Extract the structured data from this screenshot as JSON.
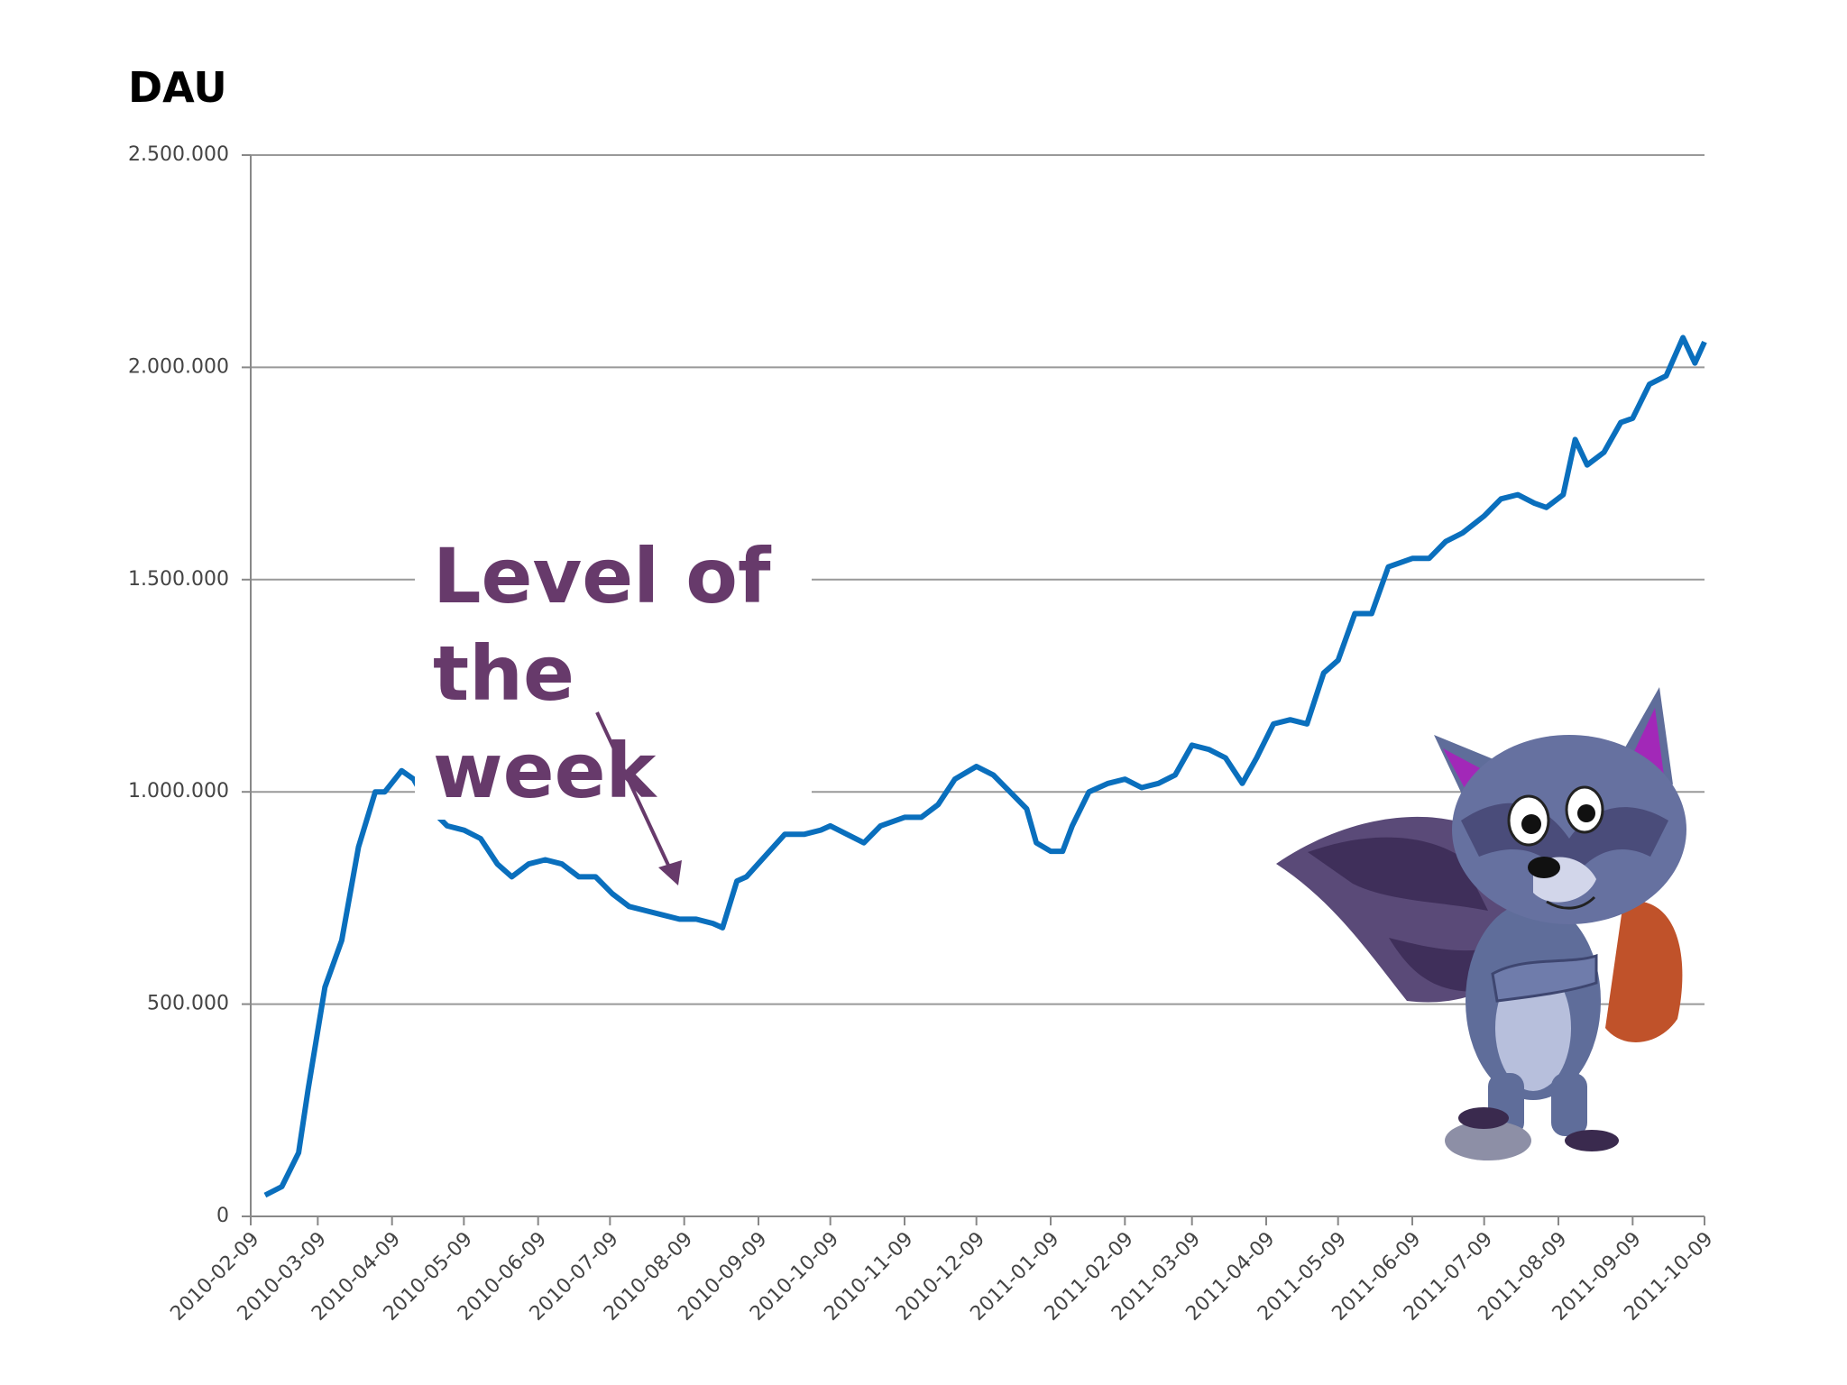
{
  "chart_data": {
    "type": "line",
    "title": "DAU",
    "annotation": "Level of the week",
    "color": "#0a6fbd",
    "grid": true,
    "x": [
      "2010-02-15",
      "2010-02-22",
      "2010-03-01",
      "2010-03-05",
      "2010-03-12",
      "2010-03-19",
      "2010-03-26",
      "2010-04-02",
      "2010-04-06",
      "2010-04-13",
      "2010-04-18",
      "2010-04-25",
      "2010-05-02",
      "2010-05-09",
      "2010-05-16",
      "2010-05-23",
      "2010-05-29",
      "2010-06-05",
      "2010-06-12",
      "2010-06-19",
      "2010-06-26",
      "2010-07-03",
      "2010-07-10",
      "2010-07-17",
      "2010-07-24",
      "2010-07-31",
      "2010-08-07",
      "2010-08-14",
      "2010-08-21",
      "2010-08-25",
      "2010-08-31",
      "2010-09-04",
      "2010-09-12",
      "2010-09-20",
      "2010-09-28",
      "2010-10-05",
      "2010-10-09",
      "2010-10-16",
      "2010-10-23",
      "2010-10-30",
      "2010-11-09",
      "2010-11-16",
      "2010-11-23",
      "2010-11-30",
      "2010-12-09",
      "2010-12-16",
      "2010-12-23",
      "2010-12-30",
      "2011-01-03",
      "2011-01-09",
      "2011-01-14",
      "2011-01-18",
      "2011-01-25",
      "2011-02-02",
      "2011-02-09",
      "2011-02-16",
      "2011-02-23",
      "2011-03-02",
      "2011-03-09",
      "2011-03-16",
      "2011-03-23",
      "2011-03-30",
      "2011-04-05",
      "2011-04-12",
      "2011-04-19",
      "2011-04-26",
      "2011-05-03",
      "2011-05-09",
      "2011-05-16",
      "2011-05-23",
      "2011-05-30",
      "2011-06-09",
      "2011-06-16",
      "2011-06-23",
      "2011-06-30",
      "2011-07-09",
      "2011-07-16",
      "2011-07-23",
      "2011-07-30",
      "2011-08-04",
      "2011-08-11",
      "2011-08-16",
      "2011-08-21",
      "2011-08-28",
      "2011-09-04",
      "2011-09-09",
      "2011-09-16",
      "2011-09-23",
      "2011-09-30",
      "2011-10-05",
      "2011-10-09"
    ],
    "values": [
      50000,
      70000,
      150000,
      300000,
      540000,
      650000,
      870000,
      1000000,
      1000000,
      1050000,
      1030000,
      960000,
      920000,
      910000,
      890000,
      830000,
      800000,
      830000,
      840000,
      830000,
      800000,
      800000,
      760000,
      730000,
      720000,
      710000,
      700000,
      700000,
      690000,
      680000,
      790000,
      800000,
      850000,
      900000,
      900000,
      910000,
      920000,
      900000,
      880000,
      920000,
      940000,
      940000,
      970000,
      1030000,
      1060000,
      1040000,
      1000000,
      960000,
      880000,
      860000,
      860000,
      920000,
      1000000,
      1020000,
      1030000,
      1010000,
      1020000,
      1040000,
      1110000,
      1100000,
      1080000,
      1020000,
      1080000,
      1160000,
      1170000,
      1160000,
      1280000,
      1310000,
      1420000,
      1420000,
      1530000,
      1550000,
      1550000,
      1590000,
      1610000,
      1650000,
      1690000,
      1700000,
      1680000,
      1670000,
      1700000,
      1830000,
      1770000,
      1800000,
      1870000,
      1880000,
      1960000,
      1980000,
      2070000,
      2010000,
      2060000
    ],
    "xlim": [
      "2010-02-09",
      "2011-10-09"
    ],
    "xticks": [
      "2010-02-09",
      "2010-03-09",
      "2010-04-09",
      "2010-05-09",
      "2010-06-09",
      "2010-07-09",
      "2010-08-09",
      "2010-09-09",
      "2010-10-09",
      "2010-11-09",
      "2010-12-09",
      "2011-01-09",
      "2011-02-09",
      "2011-03-09",
      "2011-04-09",
      "2011-05-09",
      "2011-06-09",
      "2011-07-09",
      "2011-08-09",
      "2011-09-09",
      "2011-10-09"
    ],
    "ylim": [
      0,
      2500000
    ],
    "yticks": [
      0,
      {
        "value": 500000,
        "label": "500.000"
      },
      {
        "value": 1000000,
        "label": "1.000.000"
      },
      {
        "value": 1500000,
        "label": "1.500.000"
      },
      {
        "value": 2000000,
        "label": "2.000.000"
      },
      {
        "value": 2500000,
        "label": "2.500.000"
      }
    ]
  }
}
